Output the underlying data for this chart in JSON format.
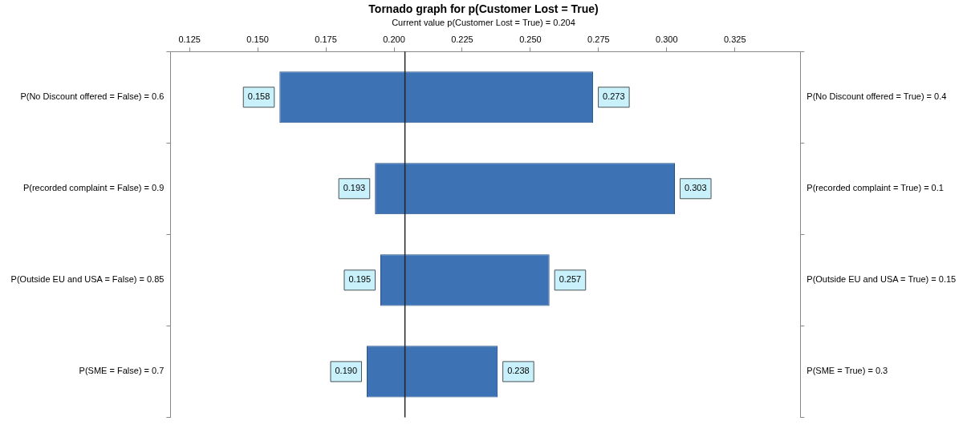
{
  "chart_data": {
    "type": "bar",
    "orientation": "horizontal",
    "title": "Tornado graph for p(Customer Lost = True)",
    "subtitle": "Current value p(Customer Lost = True) = 0.204",
    "categories": [
      "P(No Discount offered = False) = 0.6",
      "P(recorded complaint = False) = 0.9",
      "P(Outside EU and USA = False) = 0.85",
      "P(SME = False) = 0.7"
    ],
    "y2_categories": [
      "P(No Discount offered = True) = 0.4",
      "P(recorded complaint = True) = 0.1",
      "P(Outside EU and USA = True) = 0.15",
      "P(SME = True) = 0.3"
    ],
    "base": [
      0.158,
      0.193,
      0.195,
      0.19
    ],
    "values": [
      0.115,
      0.11,
      0.062,
      0.048
    ],
    "color": "#3d72b4",
    "xlim": [
      0.118,
      0.349
    ],
    "xticks": [
      0.125,
      {
        "value": 0.15,
        "label": "0.150"
      },
      0.175,
      {
        "value": 0.2,
        "label": "0.200"
      },
      0.225,
      {
        "value": 0.25,
        "label": "0.250"
      },
      0.275,
      {
        "value": 0.3,
        "label": "0.300"
      },
      0.325
    ],
    "ref_lines": [
      {
        "axis": "x",
        "value": 0.204
      }
    ],
    "annotations": [
      {
        "text": "0.158",
        "x": 0.158,
        "y": "P(No Discount offered = False) = 0.6"
      },
      {
        "text": "0.273",
        "x": 0.273,
        "y": "P(No Discount offered = False) = 0.6"
      },
      {
        "text": "0.193",
        "x": 0.193,
        "y": "P(recorded complaint = False) = 0.9"
      },
      {
        "text": "0.303",
        "x": 0.303,
        "y": "P(recorded complaint = False) = 0.9"
      },
      {
        "text": "0.195",
        "x": 0.195,
        "y": "P(Outside EU and USA = False) = 0.85"
      },
      {
        "text": "0.257",
        "x": 0.257,
        "y": "P(Outside EU and USA = False) = 0.85"
      },
      {
        "text": "0.190",
        "x": 0.19,
        "y": "P(SME = False) = 0.7"
      },
      {
        "text": "0.238",
        "x": 0.238,
        "y": "P(SME = False) = 0.7"
      }
    ],
    "grid": false
  }
}
